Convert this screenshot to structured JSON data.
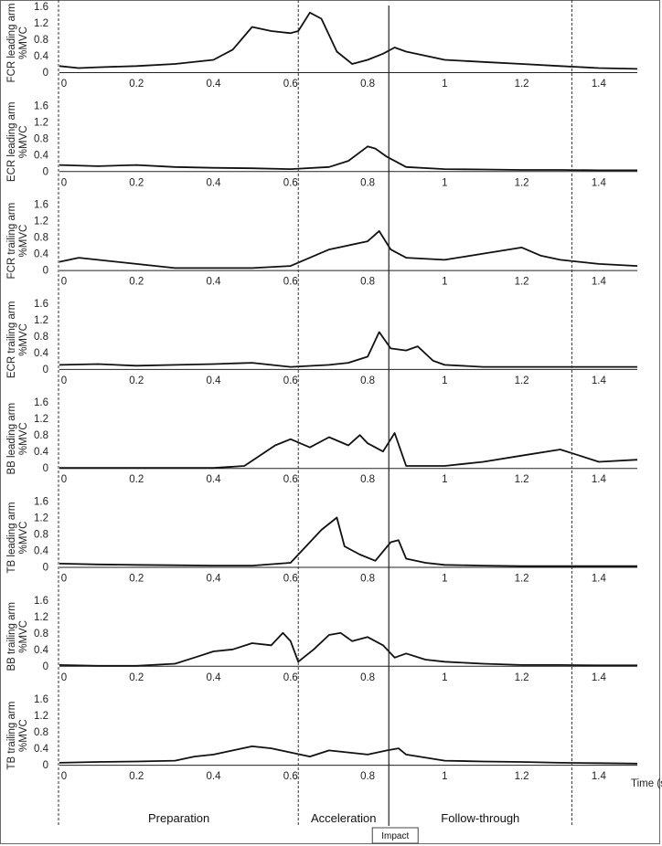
{
  "chart_data": {
    "type": "line",
    "x_axis_label": "Time (s",
    "x_ticks": [
      "0",
      "0.2",
      "0.4",
      "0.6",
      "0.8",
      "1",
      "1.2",
      "1.4"
    ],
    "x_range": [
      0,
      1.5
    ],
    "y_ticks": [
      "0",
      "0.4",
      "0.8",
      "1.2",
      "1.6"
    ],
    "y_range": [
      0,
      1.6
    ],
    "phase_boundaries": [
      0,
      0.62,
      0.855,
      1.33
    ],
    "impact_time": 0.855,
    "impact_label": "Impact",
    "phases": [
      {
        "label": "Preparation",
        "start": 0,
        "end": 0.62
      },
      {
        "label": "Acceleration",
        "start": 0.62,
        "end": 0.855
      },
      {
        "label": "Follow-through",
        "start": 0.855,
        "end": 1.33
      }
    ],
    "panels": [
      {
        "muscle": "FCR",
        "arm": "leading arm",
        "unit": "%MVC",
        "x": [
          0,
          0.05,
          0.1,
          0.2,
          0.3,
          0.4,
          0.45,
          0.5,
          0.55,
          0.6,
          0.62,
          0.65,
          0.68,
          0.72,
          0.76,
          0.8,
          0.84,
          0.87,
          0.9,
          1.0,
          1.1,
          1.2,
          1.3,
          1.4,
          1.5
        ],
        "y": [
          0.15,
          0.1,
          0.12,
          0.15,
          0.2,
          0.3,
          0.55,
          1.1,
          1.0,
          0.95,
          1.0,
          1.45,
          1.3,
          0.5,
          0.2,
          0.3,
          0.45,
          0.6,
          0.5,
          0.3,
          0.25,
          0.2,
          0.15,
          0.1,
          0.08
        ]
      },
      {
        "muscle": "ECR",
        "arm": "leading arm",
        "unit": "%MVC",
        "x": [
          0,
          0.1,
          0.2,
          0.3,
          0.4,
          0.5,
          0.6,
          0.7,
          0.75,
          0.8,
          0.82,
          0.85,
          0.9,
          1.0,
          1.1,
          1.2,
          1.3,
          1.4,
          1.5
        ],
        "y": [
          0.15,
          0.12,
          0.15,
          0.1,
          0.08,
          0.07,
          0.05,
          0.1,
          0.25,
          0.6,
          0.55,
          0.35,
          0.1,
          0.05,
          0.04,
          0.03,
          0.03,
          0.02,
          0.02
        ]
      },
      {
        "muscle": "FCR",
        "arm": "trailing arm",
        "unit": "%MVC",
        "x": [
          0,
          0.05,
          0.1,
          0.2,
          0.3,
          0.4,
          0.5,
          0.6,
          0.65,
          0.7,
          0.75,
          0.8,
          0.83,
          0.86,
          0.9,
          1.0,
          1.1,
          1.2,
          1.25,
          1.3,
          1.4,
          1.5
        ],
        "y": [
          0.2,
          0.3,
          0.25,
          0.15,
          0.05,
          0.05,
          0.05,
          0.1,
          0.3,
          0.5,
          0.6,
          0.7,
          0.95,
          0.5,
          0.3,
          0.25,
          0.4,
          0.55,
          0.35,
          0.25,
          0.15,
          0.1
        ]
      },
      {
        "muscle": "ECR",
        "arm": "trailing arm",
        "unit": "%MVC",
        "x": [
          0,
          0.1,
          0.2,
          0.3,
          0.4,
          0.5,
          0.6,
          0.7,
          0.75,
          0.8,
          0.83,
          0.86,
          0.9,
          0.93,
          0.97,
          1.0,
          1.1,
          1.2,
          1.3,
          1.4,
          1.5
        ],
        "y": [
          0.1,
          0.12,
          0.08,
          0.1,
          0.12,
          0.15,
          0.05,
          0.1,
          0.15,
          0.3,
          0.9,
          0.5,
          0.45,
          0.55,
          0.2,
          0.1,
          0.05,
          0.05,
          0.05,
          0.05,
          0.05
        ]
      },
      {
        "muscle": "BB",
        "arm": "leading arm",
        "unit": "%MVC",
        "x": [
          0,
          0.1,
          0.2,
          0.3,
          0.4,
          0.48,
          0.52,
          0.56,
          0.6,
          0.65,
          0.7,
          0.75,
          0.78,
          0.8,
          0.84,
          0.87,
          0.9,
          1.0,
          1.1,
          1.2,
          1.3,
          1.35,
          1.4,
          1.5
        ],
        "y": [
          0,
          0,
          0,
          0,
          0,
          0.05,
          0.3,
          0.55,
          0.7,
          0.5,
          0.75,
          0.55,
          0.8,
          0.6,
          0.4,
          0.85,
          0.05,
          0.05,
          0.15,
          0.3,
          0.45,
          0.3,
          0.15,
          0.2
        ]
      },
      {
        "muscle": "TB",
        "arm": "leading arm",
        "unit": "%MVC",
        "x": [
          0,
          0.1,
          0.2,
          0.3,
          0.4,
          0.5,
          0.6,
          0.65,
          0.68,
          0.72,
          0.74,
          0.78,
          0.82,
          0.86,
          0.88,
          0.9,
          0.95,
          1.0,
          1.1,
          1.2,
          1.3,
          1.4,
          1.5
        ],
        "y": [
          0.08,
          0.06,
          0.05,
          0.04,
          0.03,
          0.03,
          0.1,
          0.6,
          0.9,
          1.2,
          0.5,
          0.3,
          0.15,
          0.6,
          0.65,
          0.2,
          0.1,
          0.05,
          0.03,
          0.02,
          0.02,
          0.02,
          0.02
        ]
      },
      {
        "muscle": "BB",
        "arm": "trailing arm",
        "unit": "%MVC",
        "x": [
          0,
          0.1,
          0.2,
          0.3,
          0.35,
          0.4,
          0.45,
          0.5,
          0.55,
          0.58,
          0.6,
          0.62,
          0.66,
          0.7,
          0.73,
          0.76,
          0.8,
          0.84,
          0.87,
          0.9,
          0.95,
          1.0,
          1.1,
          1.2,
          1.3,
          1.4,
          1.5
        ],
        "y": [
          0.02,
          0,
          0,
          0.05,
          0.2,
          0.35,
          0.4,
          0.55,
          0.5,
          0.8,
          0.6,
          0.1,
          0.4,
          0.75,
          0.8,
          0.6,
          0.7,
          0.5,
          0.2,
          0.3,
          0.15,
          0.1,
          0.05,
          0.02,
          0.02,
          0.01,
          0.01
        ]
      },
      {
        "muscle": "TB",
        "arm": "trailing arm",
        "unit": "%MVC",
        "x": [
          0,
          0.1,
          0.2,
          0.3,
          0.35,
          0.4,
          0.45,
          0.5,
          0.55,
          0.6,
          0.65,
          0.7,
          0.75,
          0.8,
          0.85,
          0.88,
          0.9,
          1.0,
          1.1,
          1.2,
          1.3,
          1.4,
          1.5
        ],
        "y": [
          0.05,
          0.07,
          0.08,
          0.1,
          0.2,
          0.25,
          0.35,
          0.45,
          0.4,
          0.3,
          0.2,
          0.35,
          0.3,
          0.25,
          0.35,
          0.4,
          0.25,
          0.1,
          0.08,
          0.07,
          0.05,
          0.04,
          0.03
        ]
      }
    ]
  }
}
